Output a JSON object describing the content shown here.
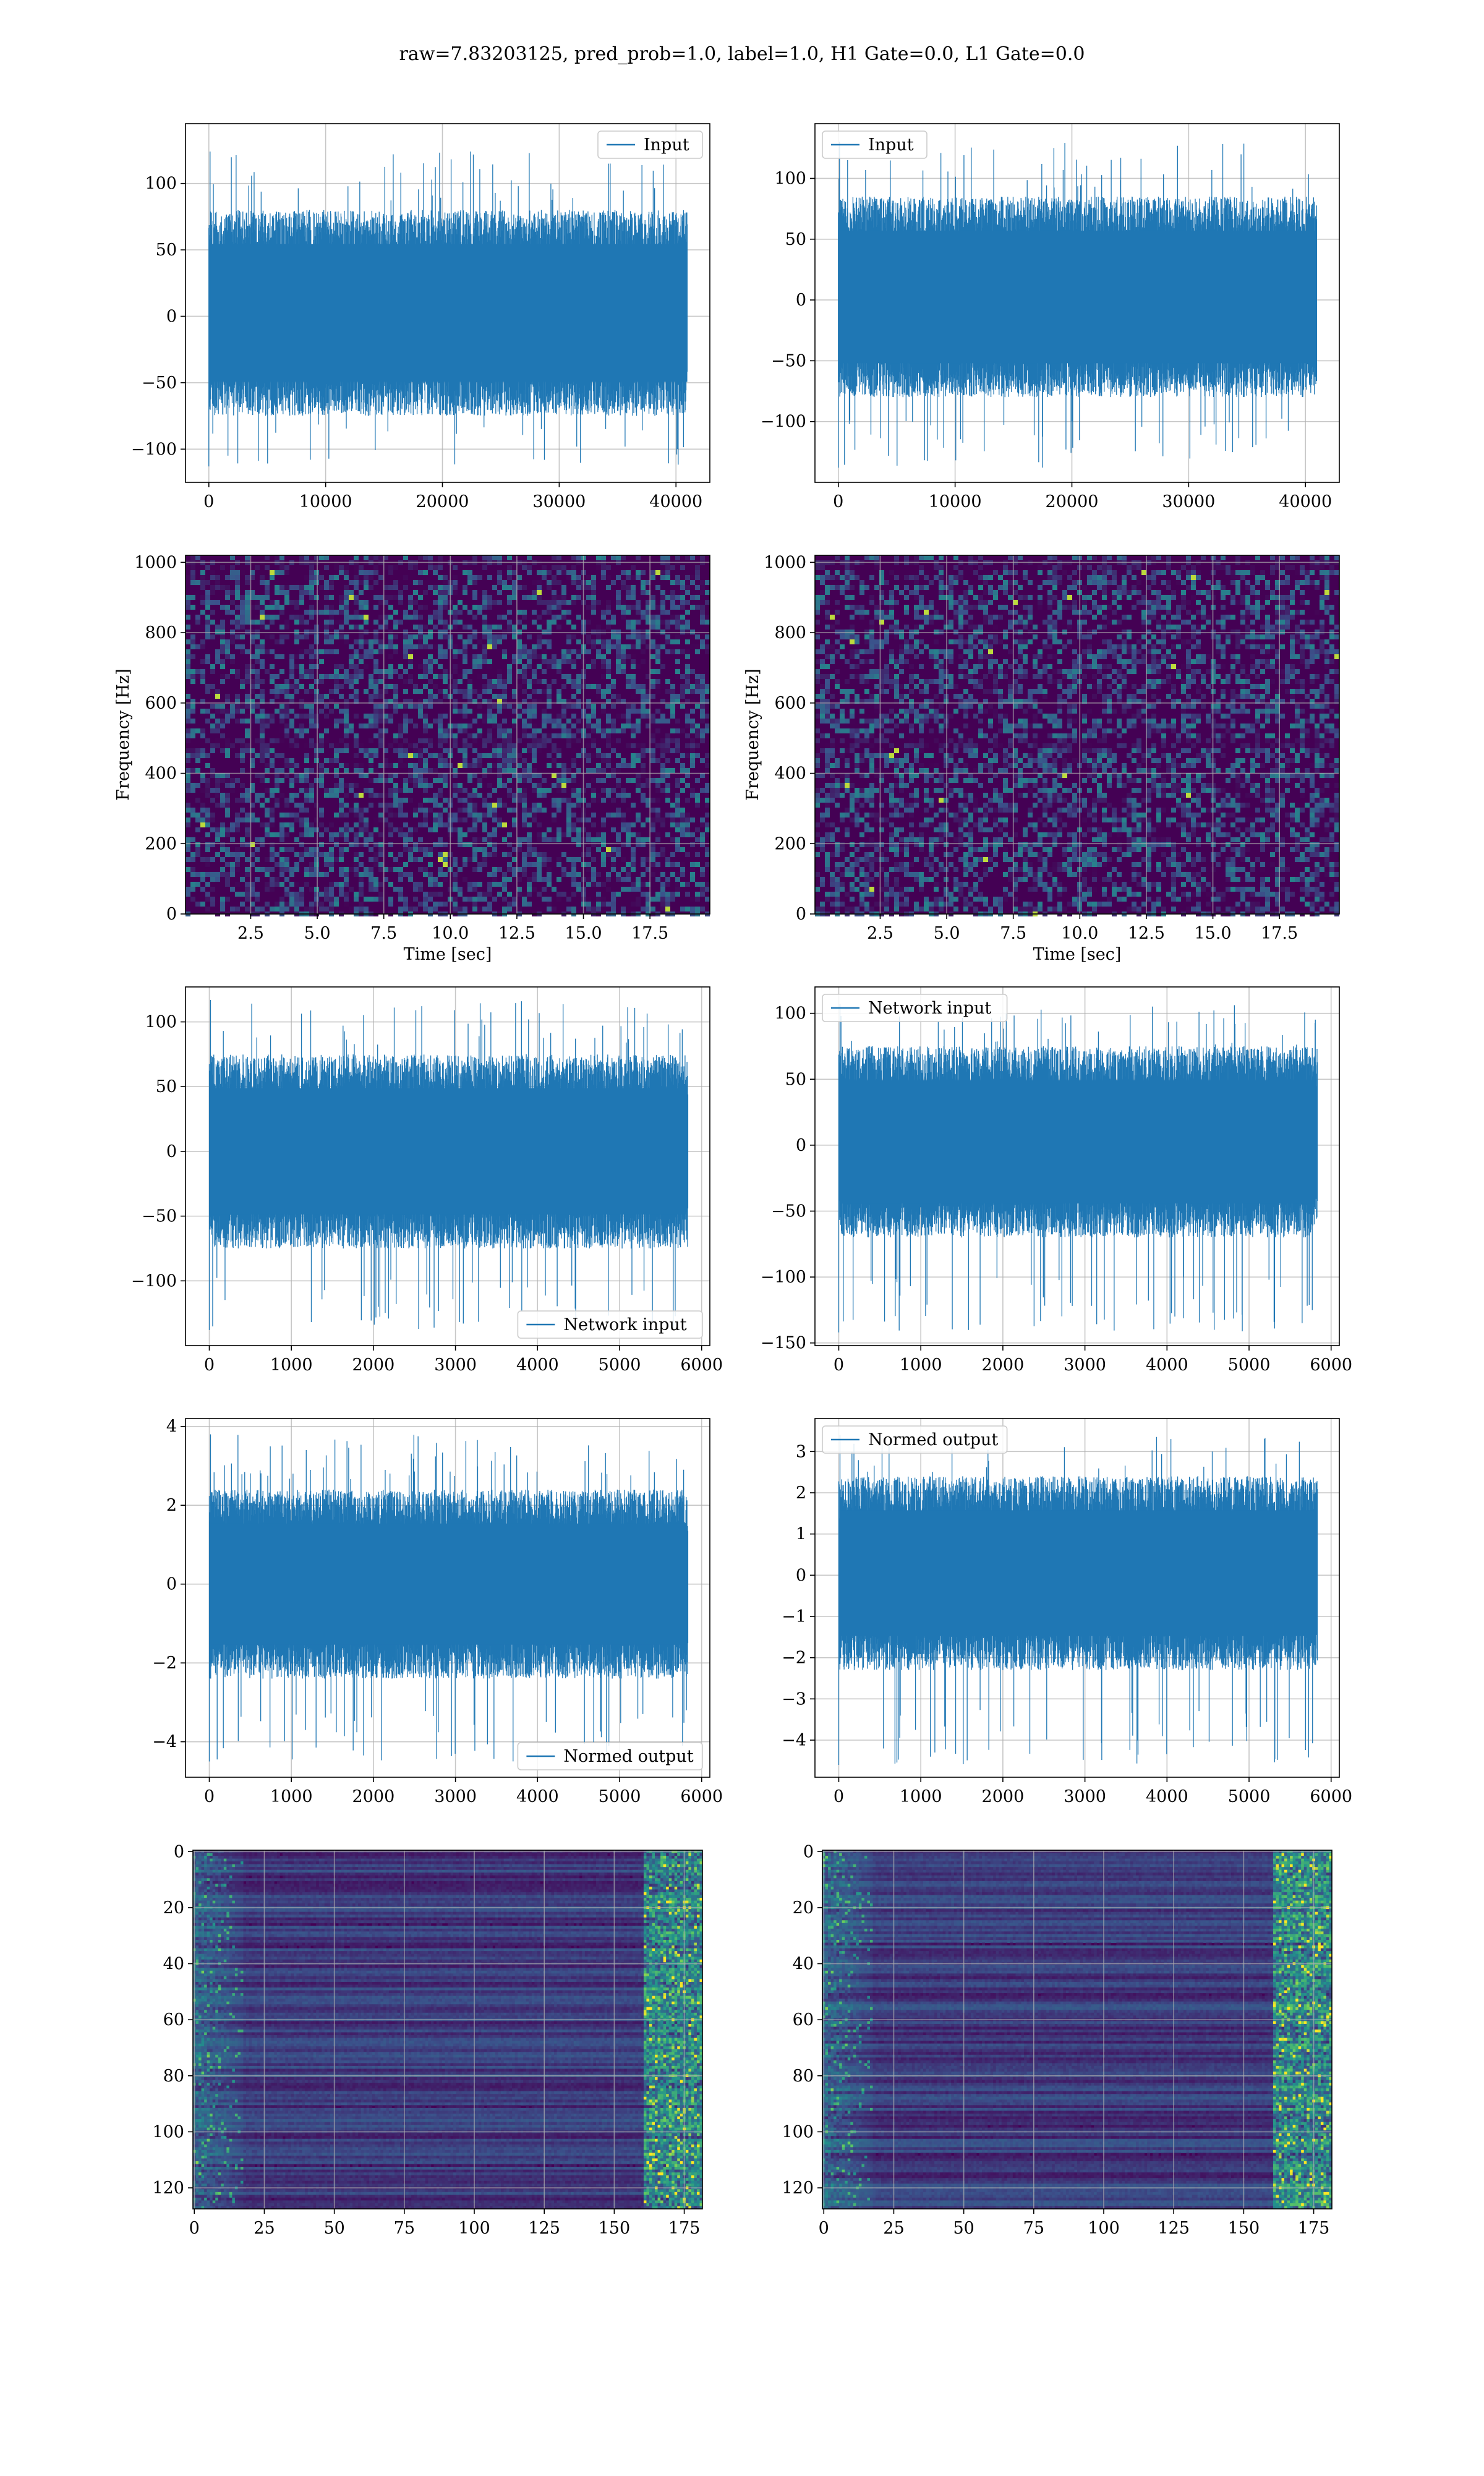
{
  "figure": {
    "suptitle": "raw=7.83203125, pred_prob=1.0, label=1.0, H1 Gate=0.0, L1 Gate=0.0"
  },
  "colors": {
    "line": "#1f77b4",
    "grid": "#b0b0b0",
    "viridis_low": "#440154",
    "viridis_mid": "#21918c",
    "viridis_high": "#fde725"
  },
  "chart_data": [
    {
      "id": "r1c1",
      "type": "line",
      "legend": {
        "entries": [
          "Input"
        ],
        "location": "upper right"
      },
      "xlim": [
        -2000,
        42900
      ],
      "ylim": [
        -125,
        145
      ],
      "xticks": [
        0,
        10000,
        20000,
        30000,
        40000
      ],
      "xticklabels": [
        "0",
        "10000",
        "20000",
        "30000",
        "40000"
      ],
      "yticks": [
        -100,
        -50,
        0,
        50,
        100
      ],
      "yticklabels": [
        "−100",
        "−50",
        "0",
        "50",
        "100"
      ],
      "xlabel": "",
      "ylabel": "",
      "grid": true,
      "series": [
        {
          "x_range": [
            0,
            40960
          ],
          "envelope_lower": -75,
          "envelope_upper": 80,
          "min": -113,
          "max": 124
        }
      ]
    },
    {
      "id": "r1c2",
      "type": "line",
      "legend": {
        "entries": [
          "Input"
        ],
        "location": "upper left"
      },
      "xlim": [
        -2000,
        42900
      ],
      "ylim": [
        -150,
        145
      ],
      "xticks": [
        0,
        10000,
        20000,
        30000,
        40000
      ],
      "xticklabels": [
        "0",
        "10000",
        "20000",
        "30000",
        "40000"
      ],
      "yticks": [
        -100,
        -50,
        0,
        50,
        100
      ],
      "yticklabels": [
        "−100",
        "−50",
        "0",
        "50",
        "100"
      ],
      "xlabel": "",
      "ylabel": "",
      "grid": true,
      "series": [
        {
          "x_range": [
            0,
            40960
          ],
          "envelope_lower": -80,
          "envelope_upper": 85,
          "min": -138,
          "max": 130
        }
      ]
    },
    {
      "id": "r2c1",
      "type": "heatmap",
      "colormap": "viridis",
      "xlim": [
        0.05,
        19.75
      ],
      "ylim": [
        0,
        1020
      ],
      "xticks": [
        2.5,
        5.0,
        7.5,
        10.0,
        12.5,
        15.0,
        17.5
      ],
      "xticklabels": [
        "2.5",
        "5.0",
        "7.5",
        "10.0",
        "12.5",
        "15.0",
        "17.5"
      ],
      "yticks": [
        0,
        200,
        400,
        600,
        800,
        1000
      ],
      "yticklabels": [
        "0",
        "200",
        "400",
        "600",
        "800",
        "1000"
      ],
      "xlabel": "Time [sec]",
      "ylabel": "Frequency [Hz]",
      "grid": true
    },
    {
      "id": "r2c2",
      "type": "heatmap",
      "colormap": "viridis",
      "xlim": [
        0.05,
        19.75
      ],
      "ylim": [
        0,
        1020
      ],
      "xticks": [
        2.5,
        5.0,
        7.5,
        10.0,
        12.5,
        15.0,
        17.5
      ],
      "xticklabels": [
        "2.5",
        "5.0",
        "7.5",
        "10.0",
        "12.5",
        "15.0",
        "17.5"
      ],
      "yticks": [
        0,
        200,
        400,
        600,
        800,
        1000
      ],
      "yticklabels": [
        "0",
        "200",
        "400",
        "600",
        "800",
        "1000"
      ],
      "xlabel": "Time [sec]",
      "ylabel": "Frequency [Hz]",
      "grid": true
    },
    {
      "id": "r3c1",
      "type": "line",
      "legend": {
        "entries": [
          "Network input"
        ],
        "location": "lower right"
      },
      "xlim": [
        -290,
        6100
      ],
      "ylim": [
        -150,
        127
      ],
      "xticks": [
        0,
        1000,
        2000,
        3000,
        4000,
        5000,
        6000
      ],
      "xticklabels": [
        "0",
        "1000",
        "2000",
        "3000",
        "4000",
        "5000",
        "6000"
      ],
      "yticks": [
        -100,
        -50,
        0,
        50,
        100
      ],
      "yticklabels": [
        "−100",
        "−50",
        "0",
        "50",
        "100"
      ],
      "xlabel": "",
      "ylabel": "",
      "grid": true,
      "series": [
        {
          "x_range": [
            0,
            5832
          ],
          "envelope_lower": -75,
          "envelope_upper": 75,
          "min": -138,
          "max": 117
        }
      ]
    },
    {
      "id": "r3c2",
      "type": "line",
      "legend": {
        "entries": [
          "Network input"
        ],
        "location": "upper left"
      },
      "xlim": [
        -290,
        6100
      ],
      "ylim": [
        -152,
        120
      ],
      "xticks": [
        0,
        1000,
        2000,
        3000,
        4000,
        5000,
        6000
      ],
      "xticklabels": [
        "0",
        "1000",
        "2000",
        "3000",
        "4000",
        "5000",
        "6000"
      ],
      "yticks": [
        -150,
        -100,
        -50,
        0,
        50,
        100
      ],
      "yticklabels": [
        "−150",
        "−100",
        "−50",
        "0",
        "50",
        "100"
      ],
      "xlabel": "",
      "ylabel": "",
      "grid": true,
      "series": [
        {
          "x_range": [
            0,
            5832
          ],
          "envelope_lower": -70,
          "envelope_upper": 75,
          "min": -142,
          "max": 107
        }
      ]
    },
    {
      "id": "r4c1",
      "type": "line",
      "legend": {
        "entries": [
          "Normed output"
        ],
        "location": "lower right"
      },
      "xlim": [
        -290,
        6100
      ],
      "ylim": [
        -4.9,
        4.2
      ],
      "xticks": [
        0,
        1000,
        2000,
        3000,
        4000,
        5000,
        6000
      ],
      "xticklabels": [
        "0",
        "1000",
        "2000",
        "3000",
        "4000",
        "5000",
        "6000"
      ],
      "yticks": [
        -4,
        -2,
        0,
        2,
        4
      ],
      "yticklabels": [
        "−4",
        "−2",
        "0",
        "2",
        "4"
      ],
      "xlabel": "",
      "ylabel": "",
      "grid": true,
      "series": [
        {
          "x_range": [
            0,
            5832
          ],
          "envelope_lower": -2.4,
          "envelope_upper": 2.4,
          "min": -4.5,
          "max": 3.8
        }
      ]
    },
    {
      "id": "r4c2",
      "type": "line",
      "legend": {
        "entries": [
          "Normed output"
        ],
        "location": "upper left"
      },
      "xlim": [
        -290,
        6100
      ],
      "ylim": [
        -4.9,
        3.8
      ],
      "xticks": [
        0,
        1000,
        2000,
        3000,
        4000,
        5000,
        6000
      ],
      "xticklabels": [
        "0",
        "1000",
        "2000",
        "3000",
        "4000",
        "5000",
        "6000"
      ],
      "yticks": [
        -4,
        -3,
        -2,
        -1,
        0,
        1,
        2,
        3
      ],
      "yticklabels": [
        "−4",
        "−3",
        "−2",
        "−1",
        "0",
        "1",
        "2",
        "3"
      ],
      "xlabel": "",
      "ylabel": "",
      "grid": true,
      "series": [
        {
          "x_range": [
            0,
            5832
          ],
          "envelope_lower": -2.3,
          "envelope_upper": 2.4,
          "min": -4.6,
          "max": 3.4
        }
      ]
    },
    {
      "id": "r5c1",
      "type": "heatmap",
      "colormap": "viridis",
      "y_inverted": true,
      "xlim": [
        -0.5,
        181.5
      ],
      "ylim": [
        -0.5,
        127.5
      ],
      "xticks": [
        0,
        25,
        50,
        75,
        100,
        125,
        150,
        175
      ],
      "xticklabels": [
        "0",
        "25",
        "50",
        "75",
        "100",
        "125",
        "150",
        "175"
      ],
      "yticks": [
        0,
        20,
        40,
        60,
        80,
        100,
        120
      ],
      "yticklabels": [
        "0",
        "20",
        "40",
        "60",
        "80",
        "100",
        "120"
      ],
      "xlabel": "",
      "ylabel": "",
      "grid": true
    },
    {
      "id": "r5c2",
      "type": "heatmap",
      "colormap": "viridis",
      "y_inverted": true,
      "xlim": [
        -0.5,
        181.5
      ],
      "ylim": [
        -0.5,
        127.5
      ],
      "xticks": [
        0,
        25,
        50,
        75,
        100,
        125,
        150,
        175
      ],
      "xticklabels": [
        "0",
        "25",
        "50",
        "75",
        "100",
        "125",
        "150",
        "175"
      ],
      "yticks": [
        0,
        20,
        40,
        60,
        80,
        100,
        120
      ],
      "yticklabels": [
        "0",
        "20",
        "40",
        "60",
        "80",
        "100",
        "120"
      ],
      "xlabel": "",
      "ylabel": "",
      "grid": true
    }
  ]
}
